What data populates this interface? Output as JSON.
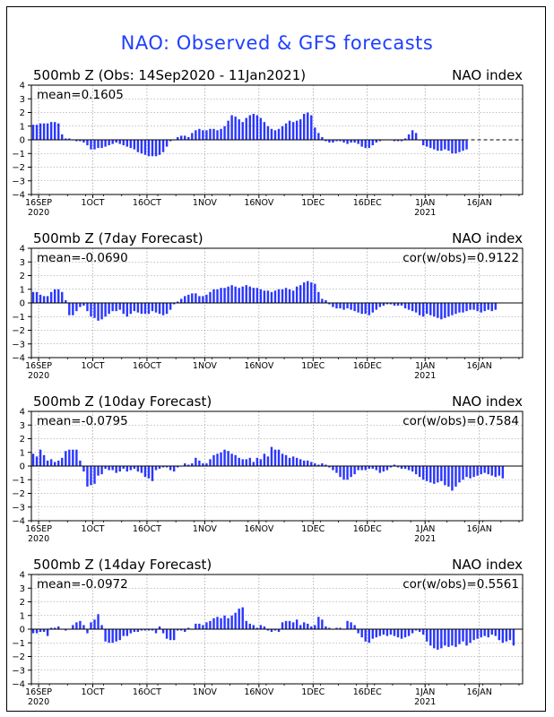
{
  "title": "NAO: Observed & GFS forecasts",
  "colors": {
    "bar": "#2a36ff",
    "title": "#1f3fff",
    "grid": "#888888",
    "axis": "#000000"
  },
  "x_ticks": [
    {
      "label": "16SEP",
      "sub": "2020",
      "day": 2
    },
    {
      "label": "1OCT",
      "sub": "",
      "day": 17
    },
    {
      "label": "16OCT",
      "sub": "",
      "day": 32
    },
    {
      "label": "1NOV",
      "sub": "",
      "day": 48
    },
    {
      "label": "16NOV",
      "sub": "",
      "day": 63
    },
    {
      "label": "1DEC",
      "sub": "",
      "day": 78
    },
    {
      "label": "16DEC",
      "sub": "",
      "day": 93
    },
    {
      "label": "1JAN",
      "sub": "2021",
      "day": 109
    },
    {
      "label": "16JAN",
      "sub": "",
      "day": 124
    }
  ],
  "chart_data": [
    {
      "type": "bar",
      "title": "500mb Z (Obs: 14Sep2020 - 11Jan2021)",
      "right_label": "NAO index",
      "mean_label": "mean=0.1605",
      "cor_label": "",
      "ylim": [
        -4,
        4
      ],
      "yticks": [
        4,
        3,
        2,
        1,
        0,
        -1,
        -2,
        -3,
        -4
      ],
      "xlim": [
        0,
        136
      ],
      "x_start": 0,
      "dashed_after": 120,
      "values": [
        1.1,
        1.1,
        1.2,
        1.2,
        1.2,
        1.3,
        1.3,
        1.2,
        0.4,
        0.1,
        0.1,
        0.0,
        -0.1,
        -0.1,
        -0.2,
        -0.4,
        -0.7,
        -0.7,
        -0.6,
        -0.6,
        -0.5,
        -0.4,
        -0.3,
        -0.2,
        -0.3,
        -0.4,
        -0.5,
        -0.6,
        -0.7,
        -0.9,
        -1.0,
        -1.1,
        -1.2,
        -1.2,
        -1.2,
        -1.1,
        -0.9,
        -0.5,
        -0.1,
        0.0,
        0.2,
        0.3,
        0.3,
        0.2,
        0.5,
        0.7,
        0.8,
        0.7,
        0.7,
        0.8,
        0.8,
        0.7,
        0.8,
        1.0,
        1.4,
        1.8,
        1.7,
        1.5,
        1.3,
        1.6,
        1.8,
        1.9,
        1.8,
        1.6,
        1.3,
        1.0,
        0.8,
        0.7,
        0.8,
        1.0,
        1.2,
        1.4,
        1.3,
        1.4,
        1.5,
        1.9,
        2.0,
        1.8,
        0.9,
        0.5,
        0.2,
        -0.1,
        -0.2,
        -0.2,
        -0.1,
        -0.1,
        -0.2,
        -0.3,
        -0.2,
        -0.2,
        -0.3,
        -0.5,
        -0.6,
        -0.6,
        -0.4,
        -0.2,
        -0.1,
        0.0,
        0.0,
        0.0,
        -0.1,
        -0.1,
        -0.1,
        0.1,
        0.4,
        0.7,
        0.5,
        0.0,
        -0.4,
        -0.5,
        -0.6,
        -0.7,
        -0.8,
        -0.8,
        -0.7,
        -0.8,
        -1.0,
        -1.0,
        -0.9,
        -0.8,
        -0.7
      ]
    },
    {
      "type": "bar",
      "title": "500mb Z (7day Forecast)",
      "right_label": "NAO index",
      "mean_label": "mean=-0.0690",
      "cor_label": "cor(w/obs)=0.9122",
      "ylim": [
        -4,
        4
      ],
      "yticks": [
        4,
        3,
        2,
        1,
        0,
        -1,
        -2,
        -3,
        -4
      ],
      "xlim": [
        0,
        136
      ],
      "x_start": 0,
      "dashed_after": null,
      "values": [
        0.8,
        0.8,
        0.6,
        0.5,
        0.5,
        0.8,
        1.0,
        1.0,
        0.8,
        0.2,
        -0.9,
        -0.9,
        -0.6,
        -0.3,
        -0.2,
        -0.6,
        -1.0,
        -1.1,
        -1.3,
        -1.2,
        -1.0,
        -0.8,
        -0.6,
        -0.6,
        -0.5,
        -0.8,
        -1.0,
        -0.8,
        -0.6,
        -0.7,
        -0.8,
        -0.8,
        -0.8,
        -0.6,
        -0.7,
        -0.8,
        -0.9,
        -0.8,
        -0.5,
        -0.1,
        0.1,
        0.3,
        0.5,
        0.6,
        0.7,
        0.7,
        0.5,
        0.5,
        0.6,
        0.8,
        1.0,
        1.0,
        1.1,
        1.1,
        1.2,
        1.3,
        1.2,
        1.1,
        1.2,
        1.3,
        1.2,
        1.1,
        1.1,
        1.0,
        0.9,
        0.9,
        0.8,
        0.9,
        1.0,
        1.0,
        1.1,
        1.0,
        0.9,
        1.2,
        1.3,
        1.5,
        1.6,
        1.5,
        1.4,
        0.8,
        0.3,
        0.2,
        -0.1,
        -0.3,
        -0.4,
        -0.4,
        -0.5,
        -0.4,
        -0.5,
        -0.6,
        -0.7,
        -0.8,
        -0.8,
        -0.9,
        -0.7,
        -0.5,
        -0.3,
        -0.2,
        -0.1,
        -0.1,
        -0.2,
        -0.2,
        -0.2,
        -0.4,
        -0.5,
        -0.6,
        -0.7,
        -0.9,
        -1.0,
        -0.8,
        -0.9,
        -1.0,
        -1.1,
        -1.2,
        -1.1,
        -1.0,
        -0.9,
        -0.8,
        -0.7,
        -0.7,
        -0.6,
        -0.5,
        -0.5,
        -0.6,
        -0.7,
        -0.6,
        -0.5,
        -0.6,
        -0.5
      ]
    },
    {
      "type": "bar",
      "title": "500mb Z (10day Forecast)",
      "right_label": "NAO index",
      "mean_label": "mean=-0.0795",
      "cor_label": "cor(w/obs)=0.7584",
      "ylim": [
        -4,
        4
      ],
      "yticks": [
        4,
        3,
        2,
        1,
        0,
        -1,
        -2,
        -3,
        -4
      ],
      "xlim": [
        0,
        136
      ],
      "x_start": 0,
      "dashed_after": null,
      "values": [
        0.9,
        0.7,
        1.2,
        0.8,
        0.4,
        0.5,
        0.3,
        0.4,
        0.6,
        1.1,
        1.2,
        1.2,
        1.2,
        0.4,
        -0.4,
        -1.5,
        -1.4,
        -1.3,
        -0.7,
        -0.6,
        -0.2,
        -0.3,
        -0.3,
        -0.5,
        -0.4,
        -0.2,
        -0.4,
        -0.3,
        -0.2,
        -0.4,
        -0.5,
        -0.8,
        -0.9,
        -1.1,
        -0.3,
        -0.2,
        -0.1,
        -0.1,
        -0.3,
        -0.4,
        -0.1,
        0.0,
        0.2,
        0.1,
        0.2,
        0.6,
        0.4,
        0.2,
        0.2,
        0.5,
        0.8,
        0.9,
        1.0,
        1.2,
        1.1,
        0.9,
        0.8,
        0.6,
        0.5,
        0.5,
        0.6,
        0.3,
        0.6,
        0.5,
        0.9,
        0.7,
        1.4,
        1.2,
        1.2,
        0.9,
        0.8,
        0.6,
        0.7,
        0.6,
        0.5,
        0.4,
        0.4,
        0.3,
        0.2,
        0.1,
        0.2,
        0.1,
        -0.1,
        -0.3,
        -0.5,
        -0.8,
        -1.0,
        -1.0,
        -0.8,
        -0.6,
        -0.3,
        -0.3,
        -0.3,
        -0.2,
        -0.2,
        -0.3,
        -0.5,
        -0.4,
        -0.3,
        -0.1,
        0.1,
        -0.1,
        -0.2,
        -0.2,
        -0.3,
        -0.4,
        -0.6,
        -0.8,
        -1.0,
        -1.1,
        -1.2,
        -1.3,
        -1.2,
        -1.1,
        -1.4,
        -1.5,
        -1.8,
        -1.5,
        -1.2,
        -1.0,
        -0.8,
        -0.9,
        -0.8,
        -0.7,
        -0.6,
        -0.5,
        -0.6,
        -0.7,
        -0.8,
        -0.7,
        -0.9
      ]
    },
    {
      "type": "bar",
      "title": "500mb Z (14day Forecast)",
      "right_label": "NAO index",
      "mean_label": "mean=-0.0972",
      "cor_label": "cor(w/obs)=0.5561",
      "ylim": [
        -4,
        4
      ],
      "yticks": [
        4,
        3,
        2,
        1,
        0,
        -1,
        -2,
        -3,
        -4
      ],
      "xlim": [
        0,
        136
      ],
      "x_start": 0,
      "dashed_after": null,
      "values": [
        -0.3,
        -0.3,
        -0.2,
        -0.2,
        -0.5,
        0.1,
        0.1,
        0.2,
        0.0,
        -0.1,
        0.0,
        0.3,
        0.5,
        0.6,
        0.3,
        -0.3,
        0.5,
        0.7,
        1.1,
        0.3,
        -0.9,
        -1.0,
        -1.0,
        -0.9,
        -0.8,
        -0.5,
        -0.5,
        -0.3,
        -0.2,
        -0.2,
        -0.1,
        -0.1,
        -0.1,
        -0.1,
        -0.3,
        0.2,
        -0.3,
        -0.7,
        -0.8,
        -0.8,
        -0.1,
        -0.1,
        -0.2,
        0.1,
        0.0,
        0.4,
        0.4,
        0.3,
        0.5,
        0.6,
        0.8,
        0.9,
        0.8,
        1.0,
        0.8,
        1.0,
        1.2,
        1.5,
        1.6,
        0.6,
        0.4,
        0.3,
        0.1,
        0.3,
        0.2,
        -0.1,
        -0.2,
        -0.1,
        -0.2,
        0.5,
        0.6,
        0.6,
        0.5,
        0.7,
        0.3,
        0.5,
        0.4,
        0.2,
        0.3,
        0.9,
        0.7,
        0.2,
        0.1,
        0.0,
        0.1,
        0.1,
        0.0,
        0.6,
        0.5,
        0.3,
        -0.3,
        -0.6,
        -0.9,
        -1.0,
        -0.7,
        -0.6,
        -0.5,
        -0.4,
        -0.5,
        -0.4,
        -0.5,
        -0.6,
        -0.7,
        -0.6,
        -0.5,
        -0.3,
        -0.1,
        -0.2,
        -0.4,
        -0.9,
        -1.2,
        -1.4,
        -1.5,
        -1.4,
        -1.2,
        -1.3,
        -1.2,
        -1.3,
        -1.1,
        -0.9,
        -1.2,
        -1.0,
        -0.8,
        -0.7,
        -0.6,
        -0.5,
        -0.6,
        -0.4,
        -0.5,
        -0.8,
        -1.0,
        -0.9,
        -0.8,
        -1.2
      ]
    }
  ]
}
